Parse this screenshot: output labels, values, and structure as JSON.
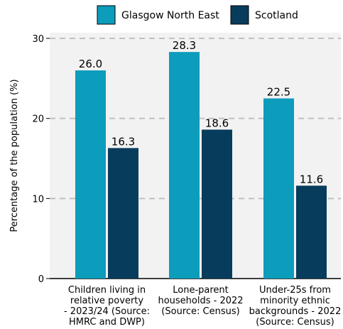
{
  "chart_data": {
    "type": "bar",
    "title": "",
    "xlabel": "",
    "ylabel": "Percentage of the population (%)",
    "ylim": [
      0,
      30
    ],
    "yticks": [
      0,
      10,
      20,
      30
    ],
    "grid": true,
    "legend_position": "top-center",
    "categories": [
      [
        "Children living in",
        "relative poverty",
        "- 2023/24 (Source:",
        "HMRC and DWP)"
      ],
      [
        "Lone-parent",
        "households - 2022",
        "(Source: Census)"
      ],
      [
        "Under-25s from",
        "minority ethnic",
        "backgrounds - 2022",
        "(Source: Census)"
      ]
    ],
    "series": [
      {
        "name": "Glasgow North East",
        "color": "#0c9cbc",
        "values": [
          26.0,
          28.3,
          22.5
        ],
        "labels": [
          "26.0",
          "28.3",
          "22.5"
        ]
      },
      {
        "name": "Scotland",
        "color": "#083c5c",
        "values": [
          16.3,
          18.6,
          11.6
        ],
        "labels": [
          "16.3",
          "18.6",
          "11.6"
        ]
      }
    ]
  }
}
